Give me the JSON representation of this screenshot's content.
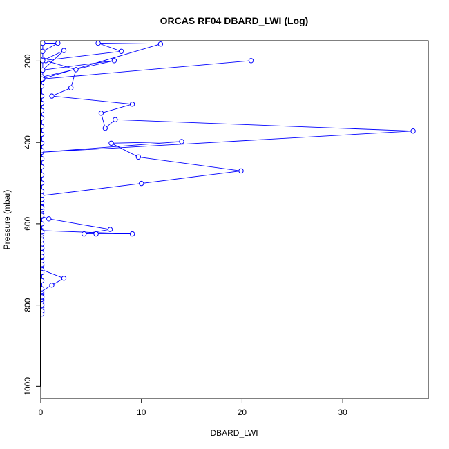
{
  "chart_data": {
    "type": "line",
    "title": "ORCAS RF04 DBARD_LWI (Log)",
    "xlabel": "DBARD_LWI",
    "ylabel": "Pressure (mbar)",
    "xlim": [
      0,
      38.5
    ],
    "ylim": [
      1030,
      150
    ],
    "y_reversed": true,
    "xticks": [
      0,
      10,
      20,
      30
    ],
    "yticks": [
      200,
      400,
      600,
      800,
      1000
    ],
    "grid": false,
    "line_color": "#0000ff",
    "marker": "open-circle",
    "series": [
      {
        "points": [
          [
            0.1,
            819
          ],
          [
            0.1,
            816
          ],
          [
            0.1,
            813
          ],
          [
            0.1,
            810
          ],
          [
            0.1,
            806
          ],
          [
            0.1,
            802
          ],
          [
            0.1,
            798
          ],
          [
            0.1,
            794
          ],
          [
            0.1,
            790
          ],
          [
            0.1,
            786
          ],
          [
            0.1,
            782
          ],
          [
            0.1,
            778
          ],
          [
            0.1,
            774
          ],
          [
            0.1,
            770
          ],
          [
            0.1,
            766
          ],
          [
            1.1,
            751
          ],
          [
            2.3,
            734
          ],
          [
            0.1,
            713
          ],
          [
            0.1,
            703
          ],
          [
            0.1,
            693
          ],
          [
            0.1,
            682
          ],
          [
            0.1,
            672
          ],
          [
            0.1,
            661
          ],
          [
            0.1,
            650
          ],
          [
            0.1,
            640
          ],
          [
            0.1,
            630
          ],
          [
            0.1,
            625
          ],
          [
            0.1,
            620
          ],
          [
            0.1,
            617
          ],
          [
            9.1,
            625
          ],
          [
            5.5,
            625
          ],
          [
            4.3,
            625
          ],
          [
            6.9,
            614
          ],
          [
            0.8,
            588
          ],
          [
            0.1,
            582
          ],
          [
            0.1,
            575
          ],
          [
            0.1,
            566
          ],
          [
            0.1,
            558
          ],
          [
            0.1,
            548
          ],
          [
            0.1,
            540
          ],
          [
            0.1,
            531
          ],
          [
            10.0,
            501
          ],
          [
            19.9,
            470
          ],
          [
            9.7,
            436
          ],
          [
            7.0,
            402
          ],
          [
            14.0,
            398
          ],
          [
            0.1,
            424
          ],
          [
            37.0,
            372
          ],
          [
            7.4,
            344
          ],
          [
            6.4,
            365
          ],
          [
            6.0,
            328
          ],
          [
            9.1,
            306
          ],
          [
            1.1,
            286
          ],
          [
            3.0,
            266
          ],
          [
            3.5,
            221
          ],
          [
            0.5,
            199
          ],
          [
            0.2,
            196
          ],
          [
            0.2,
            176
          ],
          [
            1.7,
            156
          ],
          [
            0.2,
            156
          ],
          [
            0.2,
            244
          ],
          [
            20.9,
            199
          ],
          [
            0.2,
            244
          ],
          [
            0.1,
            239
          ],
          [
            7.3,
            199
          ],
          [
            0.2,
            222
          ],
          [
            2.3,
            174
          ],
          [
            0.2,
            199
          ],
          [
            8.0,
            176
          ],
          [
            5.7,
            156
          ],
          [
            11.9,
            158
          ],
          [
            0.1,
            244
          ],
          [
            0.1,
            262
          ],
          [
            0.1,
            286
          ],
          [
            0.1,
            304
          ],
          [
            0.1,
            322
          ],
          [
            0.1,
            340
          ],
          [
            0.1,
            361
          ],
          [
            0.1,
            380
          ],
          [
            0.1,
            402
          ],
          [
            0.1,
            420
          ],
          [
            0.1,
            440
          ],
          [
            0.1,
            460
          ],
          [
            0.1,
            480
          ],
          [
            0.1,
            500
          ],
          [
            0.1,
            520
          ],
          [
            0.1,
            540
          ],
          [
            0.1,
            560
          ],
          [
            0.1,
            580
          ],
          [
            0.1,
            600
          ],
          [
            0.1,
            620
          ],
          [
            0.1,
            640
          ],
          [
            0.1,
            660
          ],
          [
            0.1,
            680
          ],
          [
            0.1,
            700
          ],
          [
            0.1,
            720
          ],
          [
            0.1,
            740
          ],
          [
            0.1,
            760
          ],
          [
            0.1,
            780
          ],
          [
            0.1,
            800
          ],
          [
            0.1,
            815
          ],
          [
            0.1,
            822
          ]
        ]
      }
    ]
  }
}
